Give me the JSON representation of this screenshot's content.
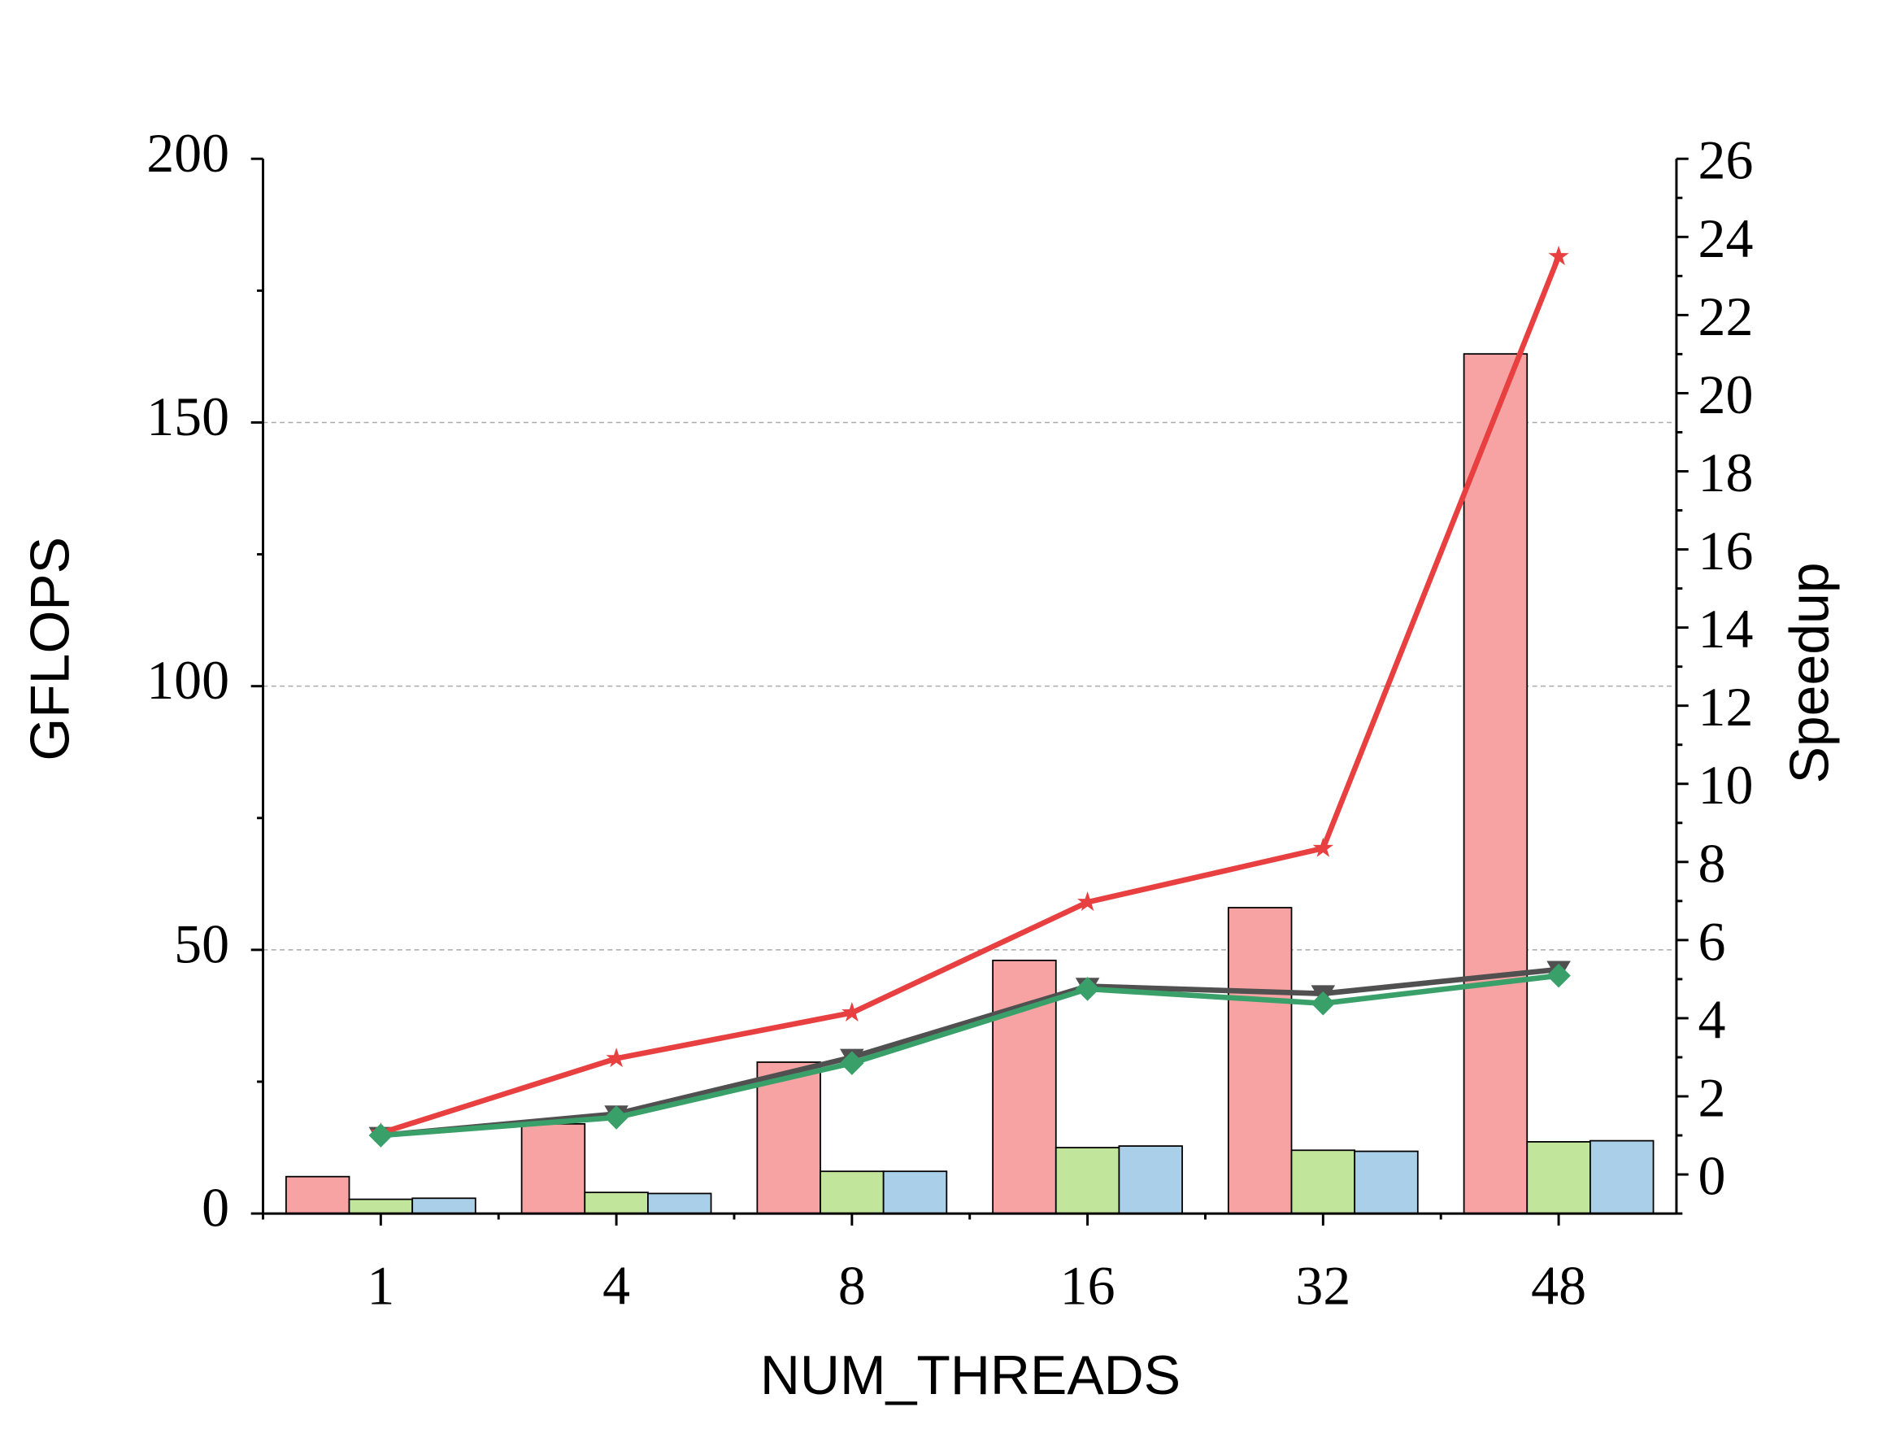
{
  "chart_data": {
    "type": "bar+line",
    "xlabel": "NUM_THREADS",
    "ylabel": "GFLOPS",
    "y2label": "Speedup",
    "categories": [
      "1",
      "4",
      "8",
      "16",
      "32",
      "48"
    ],
    "ylim": [
      0,
      200
    ],
    "yticks": [
      0,
      50,
      100,
      150,
      200
    ],
    "yminorticks": [
      25,
      75,
      125,
      175
    ],
    "y2lim": [
      -1,
      26
    ],
    "y2ticks": [
      0,
      2,
      4,
      6,
      8,
      10,
      12,
      14,
      16,
      18,
      20,
      22,
      24,
      26
    ],
    "y2minorticks": [
      -1,
      1,
      3,
      5,
      7,
      9,
      11,
      13,
      15,
      17,
      19,
      21,
      23,
      25
    ],
    "grid": true,
    "series": [
      {
        "type": "bar",
        "axis": "y",
        "color": "#f8a3a3",
        "values": [
          7,
          17,
          28.7,
          48,
          58,
          163
        ]
      },
      {
        "type": "bar",
        "axis": "y",
        "color": "#c2e59c",
        "values": [
          2.7,
          4,
          8,
          12.5,
          12,
          13.6
        ]
      },
      {
        "type": "bar",
        "axis": "y",
        "color": "#a9d0e8",
        "values": [
          2.9,
          3.8,
          8,
          12.8,
          11.8,
          13.8
        ]
      },
      {
        "type": "line",
        "axis": "y2",
        "color": "#505050",
        "marker": "triangle-down",
        "values": [
          1,
          1.55,
          3.0,
          4.82,
          4.63,
          5.25
        ]
      },
      {
        "type": "line",
        "axis": "y2",
        "color": "#e84040",
        "marker": "star",
        "values": [
          1.06,
          2.97,
          4.14,
          6.97,
          8.35,
          23.5
        ]
      },
      {
        "type": "line",
        "axis": "y2",
        "color": "#3aa06a",
        "marker": "diamond",
        "values": [
          1,
          1.46,
          2.85,
          4.75,
          4.38,
          5.09
        ]
      }
    ]
  }
}
